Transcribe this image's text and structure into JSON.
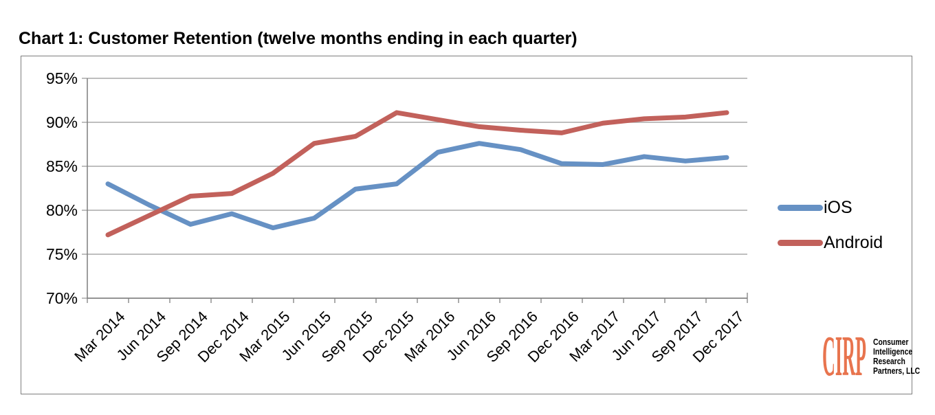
{
  "page": {
    "title": "Chart 1: Customer Retention (twelve months ending in each quarter)"
  },
  "chart_data": {
    "type": "line",
    "title": "Chart 1: Customer Retention (twelve months ending in each quarter)",
    "categories": [
      "Mar 2014",
      "Jun 2014",
      "Sep 2014",
      "Dec 2014",
      "Mar 2015",
      "Jun 2015",
      "Sep 2015",
      "Dec 2015",
      "Mar 2016",
      "Jun 2016",
      "Sep 2016",
      "Dec 2016",
      "Mar 2017",
      "Jun 2017",
      "Sep 2017",
      "Dec 2017"
    ],
    "series": [
      {
        "name": "iOS",
        "color": "#6691C4",
        "values": [
          83.0,
          80.6,
          78.4,
          79.6,
          78.0,
          79.1,
          82.4,
          83.0,
          86.6,
          87.6,
          86.9,
          85.3,
          85.2,
          86.1,
          85.6,
          86.0
        ]
      },
      {
        "name": "Android",
        "color": "#C2615B",
        "values": [
          77.2,
          79.4,
          81.6,
          81.9,
          84.2,
          87.6,
          88.4,
          91.1,
          90.3,
          89.5,
          89.1,
          88.8,
          89.9,
          90.4,
          90.6,
          91.1
        ]
      }
    ],
    "ylim": [
      70,
      95
    ],
    "yticks": [
      {
        "value": 95,
        "label": "95%"
      },
      {
        "value": 90,
        "label": "90%"
      },
      {
        "value": 85,
        "label": "85%"
      },
      {
        "value": 80,
        "label": "80%"
      },
      {
        "value": 75,
        "label": "75%"
      },
      {
        "value": 70,
        "label": "70%"
      }
    ],
    "xlabel": "",
    "ylabel": "",
    "grid": "horizontal",
    "legend_position": "right-outside",
    "grid_color": "#A9A9A9",
    "axis_color": "#7F7F7F"
  },
  "logo": {
    "acronym": "CIRP",
    "accent_color": "#E8744E",
    "lines": [
      "Consumer",
      "Intelligence",
      "Research",
      "Partners, LLC"
    ]
  }
}
